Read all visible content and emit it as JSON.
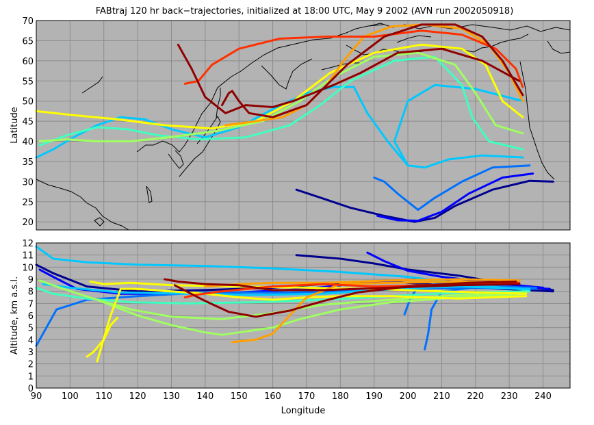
{
  "figure_title": "FABtraj 120 hr back−trajectories, initialized at 18:00 UTC, May 9 2002 (AVN run 2002050918)",
  "colors": {
    "plot_background": "#b3b3b3",
    "grid": "#8c8c8c",
    "coastline": "#000000",
    "trajectory_palette": [
      "#00008f",
      "#0000ff",
      "#0070ff",
      "#00c8ff",
      "#40ffbf",
      "#9fff60",
      "#ffff00",
      "#ffa000",
      "#ff3000",
      "#8f0000"
    ]
  },
  "chart_data": [
    {
      "type": "line",
      "panel": "map",
      "xlabel": "",
      "ylabel": "Latitude",
      "xlim": [
        90,
        248
      ],
      "ylim": [
        18,
        70
      ],
      "x_ticks": [],
      "y_ticks": [
        20,
        25,
        30,
        35,
        40,
        45,
        50,
        55,
        60,
        65,
        70
      ],
      "grid": true,
      "legend": "none",
      "series": [
        {
          "color": "#00008f",
          "x": [
            243,
            236,
            225,
            214,
            208,
            202,
            193,
            183,
            176,
            167
          ],
          "y": [
            30.0,
            30.2,
            28,
            24,
            21,
            20,
            21.5,
            23.5,
            25.5,
            28
          ]
        },
        {
          "color": "#0000ff",
          "x": [
            237,
            228,
            218,
            210,
            203,
            197,
            191
          ],
          "y": [
            32.0,
            31,
            27,
            22.5,
            20.3,
            20.4,
            21.5
          ]
        },
        {
          "color": "#0070ff",
          "x": [
            236,
            225,
            216,
            208,
            203,
            197,
            193,
            190
          ],
          "y": [
            34.0,
            33.5,
            30,
            26,
            23,
            27,
            30,
            31
          ]
        },
        {
          "color": "#00c8ff",
          "x": [
            234,
            222,
            212,
            205,
            200,
            196,
            200,
            208,
            220,
            234
          ],
          "y": [
            36.0,
            36.5,
            35.5,
            33.5,
            34,
            40,
            50,
            54,
            53,
            50
          ]
        },
        {
          "color": "#00c8ff",
          "x": [
            200,
            194,
            188,
            184,
            178,
            170,
            160,
            150,
            140,
            130,
            122,
            115,
            108,
            101,
            95,
            90
          ],
          "y": [
            34,
            40,
            47,
            53.5,
            53.5,
            52,
            48,
            43.5,
            41,
            43,
            45.5,
            46,
            44,
            41,
            38,
            36
          ]
        },
        {
          "color": "#40ffbf",
          "x": [
            234,
            224,
            219,
            216,
            208,
            196,
            183,
            174,
            165,
            152,
            138,
            126,
            117,
            108,
            99,
            91
          ],
          "y": [
            38.0,
            40,
            46,
            54,
            61,
            60,
            55,
            49,
            44,
            41,
            40.5,
            41.5,
            43,
            43.5,
            41.5,
            39
          ]
        },
        {
          "color": "#9fff60",
          "x": [
            234,
            226,
            220,
            214,
            203,
            190,
            178,
            168,
            157,
            143,
            129,
            118,
            108,
            99,
            91
          ],
          "y": [
            42.0,
            44,
            52,
            59,
            62,
            61,
            56,
            50,
            45,
            42.5,
            41,
            40,
            40,
            40.5,
            40
          ]
        },
        {
          "color": "#ffff00",
          "x": [
            234,
            228,
            223,
            216,
            204,
            190,
            177,
            166,
            155,
            142,
            128,
            114,
            101,
            90
          ],
          "y": [
            46.0,
            50,
            59,
            63,
            64,
            62,
            57,
            50,
            45,
            43.2,
            44,
            45.5,
            46.5,
            47.5
          ]
        },
        {
          "color": "#ffa000",
          "x": [
            234,
            230,
            224,
            216,
            205,
            195,
            187,
            181,
            176,
            170,
            163,
            155,
            146
          ],
          "y": [
            50.0,
            57,
            64,
            68,
            69,
            68.5,
            66,
            60,
            54,
            49,
            46,
            45,
            44
          ]
        },
        {
          "color": "#ff3000",
          "x": [
            234,
            232,
            226,
            216,
            204,
            190,
            176,
            162,
            150,
            142,
            138,
            134
          ],
          "y": [
            53.5,
            58,
            63,
            66.5,
            67.5,
            66,
            66,
            65.5,
            63,
            59,
            55,
            54.3
          ]
        },
        {
          "color": "#8f0000",
          "x": [
            234,
            228,
            222,
            214,
            204,
            193,
            182,
            170,
            160,
            153,
            150,
            148,
            147,
            145
          ],
          "y": [
            51.5,
            60,
            66,
            69,
            69,
            66,
            59,
            49,
            46,
            47,
            50,
            52.5,
            52,
            49
          ]
        },
        {
          "color": "#8f0000",
          "x": [
            233,
            222,
            210,
            197,
            186,
            178,
            172,
            166,
            160,
            152,
            146,
            140,
            136,
            132
          ],
          "y": [
            55.0,
            60,
            63,
            62,
            57,
            54,
            52,
            50,
            48.5,
            49,
            47,
            51,
            58,
            64
          ]
        }
      ]
    },
    {
      "type": "line",
      "panel": "altitude",
      "xlabel": "Longitude",
      "ylabel": "Altitude, km a.s.l.",
      "xlim": [
        90,
        248
      ],
      "ylim": [
        0,
        12
      ],
      "x_ticks": [
        90,
        100,
        110,
        120,
        130,
        140,
        150,
        160,
        170,
        180,
        190,
        200,
        210,
        220,
        230,
        240
      ],
      "y_ticks": [
        0,
        1,
        2,
        3,
        4,
        5,
        6,
        7,
        8,
        9,
        10,
        11,
        12
      ],
      "grid": true,
      "legend": "none",
      "series": [
        {
          "color": "#00008f",
          "x": [
            243,
            230,
            215,
            200,
            190,
            180,
            167
          ],
          "y": [
            8.1,
            8.6,
            9.3,
            9.8,
            10.3,
            10.7,
            11.0
          ]
        },
        {
          "color": "#00008f",
          "x": [
            243,
            228,
            210,
            195,
            180,
            160,
            140,
            120,
            105,
            95,
            90
          ],
          "y": [
            8.0,
            8.2,
            8.5,
            8.8,
            8.7,
            8.3,
            8.1,
            8.0,
            8.4,
            9.5,
            10.2
          ]
        },
        {
          "color": "#0000ff",
          "x": [
            242,
            225,
            205,
            190,
            170,
            150,
            130,
            115,
            102,
            95,
            91
          ],
          "y": [
            8.2,
            8.5,
            9.0,
            8.8,
            8.2,
            7.9,
            7.8,
            7.8,
            8.2,
            9.2,
            9.8
          ]
        },
        {
          "color": "#0000ff",
          "x": [
            240,
            225,
            210,
            200,
            193,
            188
          ],
          "y": [
            8.3,
            8.7,
            9.2,
            9.7,
            10.5,
            11.2
          ]
        },
        {
          "color": "#0070ff",
          "x": [
            238,
            225,
            210,
            203,
            201,
            199
          ],
          "y": [
            8.2,
            8.5,
            8.7,
            8.3,
            7.6,
            6.1
          ]
        },
        {
          "color": "#0070ff",
          "x": [
            238,
            222,
            210,
            207,
            206,
            205
          ],
          "y": [
            8.3,
            8.4,
            8.0,
            6.5,
            4.5,
            3.2
          ]
        },
        {
          "color": "#0070ff",
          "x": [
            237,
            215,
            190,
            165,
            140,
            120,
            105,
            96,
            92,
            90
          ],
          "y": [
            8.2,
            8.3,
            8.1,
            7.9,
            7.9,
            7.6,
            7.3,
            6.5,
            4.5,
            3.5
          ]
        },
        {
          "color": "#00c8ff",
          "x": [
            236,
            220,
            200,
            180,
            160,
            140,
            120,
            105,
            95,
            90
          ],
          "y": [
            8.1,
            8.5,
            9.2,
            9.6,
            9.9,
            10.1,
            10.2,
            10.4,
            10.7,
            11.7
          ]
        },
        {
          "color": "#00c8ff",
          "x": [
            236,
            215,
            195,
            175,
            155,
            135,
            115,
            100,
            92
          ],
          "y": [
            8.2,
            8.4,
            8.2,
            7.8,
            7.7,
            7.8,
            7.9,
            8.3,
            8.6
          ]
        },
        {
          "color": "#40ffbf",
          "x": [
            236,
            215,
            195,
            175,
            155,
            135,
            118,
            105,
            95,
            90
          ],
          "y": [
            8.0,
            7.9,
            7.6,
            7.3,
            7.1,
            7.0,
            7.1,
            7.4,
            7.8,
            8.3
          ]
        },
        {
          "color": "#9fff60",
          "x": [
            235,
            215,
            195,
            175,
            160,
            145,
            130,
            118,
            108,
            98,
            91
          ],
          "y": [
            7.9,
            7.7,
            7.3,
            6.9,
            6.2,
            5.7,
            5.9,
            6.5,
            7.3,
            8.2,
            8.9
          ]
        },
        {
          "color": "#9fff60",
          "x": [
            235,
            215,
            195,
            180,
            168,
            160,
            150,
            145,
            140,
            130,
            120,
            108
          ],
          "y": [
            7.8,
            7.5,
            7.1,
            6.5,
            5.7,
            5.0,
            4.6,
            4.4,
            4.6,
            5.2,
            6.0,
            7.3
          ]
        },
        {
          "color": "#ffff00",
          "x": [
            235,
            215,
            195,
            180,
            170,
            160,
            150,
            140,
            130,
            120,
            115,
            112,
            108
          ],
          "y": [
            7.6,
            7.4,
            7.6,
            7.6,
            7.5,
            7.3,
            7.5,
            7.8,
            8.0,
            8.2,
            8.2,
            6.0,
            2.2
          ]
        },
        {
          "color": "#ffff00",
          "x": [
            235,
            210,
            190,
            170,
            150,
            130,
            118,
            110,
            106
          ],
          "y": [
            7.8,
            8.0,
            8.2,
            8.3,
            8.4,
            8.5,
            8.7,
            8.6,
            8.8
          ]
        },
        {
          "color": "#ffff00",
          "x": [
            114,
            112,
            110,
            107,
            105
          ],
          "y": [
            5.8,
            5.2,
            4.0,
            3.0,
            2.6
          ]
        },
        {
          "color": "#ffa000",
          "x": [
            233,
            215,
            195,
            180,
            170,
            165,
            160,
            155,
            148
          ],
          "y": [
            8.7,
            8.8,
            8.7,
            8.6,
            7.5,
            6.0,
            4.5,
            4.0,
            3.8
          ]
        },
        {
          "color": "#ffa000",
          "x": [
            233,
            215,
            195,
            175,
            160,
            150,
            140
          ],
          "y": [
            8.9,
            9.0,
            8.9,
            8.7,
            8.7,
            8.6,
            8.4
          ]
        },
        {
          "color": "#ff3000",
          "x": [
            233,
            220,
            205,
            190,
            175,
            160,
            145,
            137,
            134
          ],
          "y": [
            8.7,
            8.6,
            8.5,
            8.4,
            8.6,
            8.4,
            8.0,
            7.7,
            7.5
          ]
        },
        {
          "color": "#8f0000",
          "x": [
            232,
            218,
            200,
            185,
            175,
            165,
            155,
            147,
            140,
            131
          ],
          "y": [
            8.8,
            8.7,
            8.4,
            7.9,
            7.2,
            6.4,
            5.9,
            6.3,
            7.2,
            8.5
          ]
        },
        {
          "color": "#8f0000",
          "x": [
            233,
            215,
            195,
            175,
            160,
            150,
            140,
            132,
            128
          ],
          "y": [
            8.6,
            8.5,
            8.3,
            8.1,
            8.1,
            8.5,
            8.6,
            8.8,
            9.0
          ]
        }
      ]
    }
  ]
}
